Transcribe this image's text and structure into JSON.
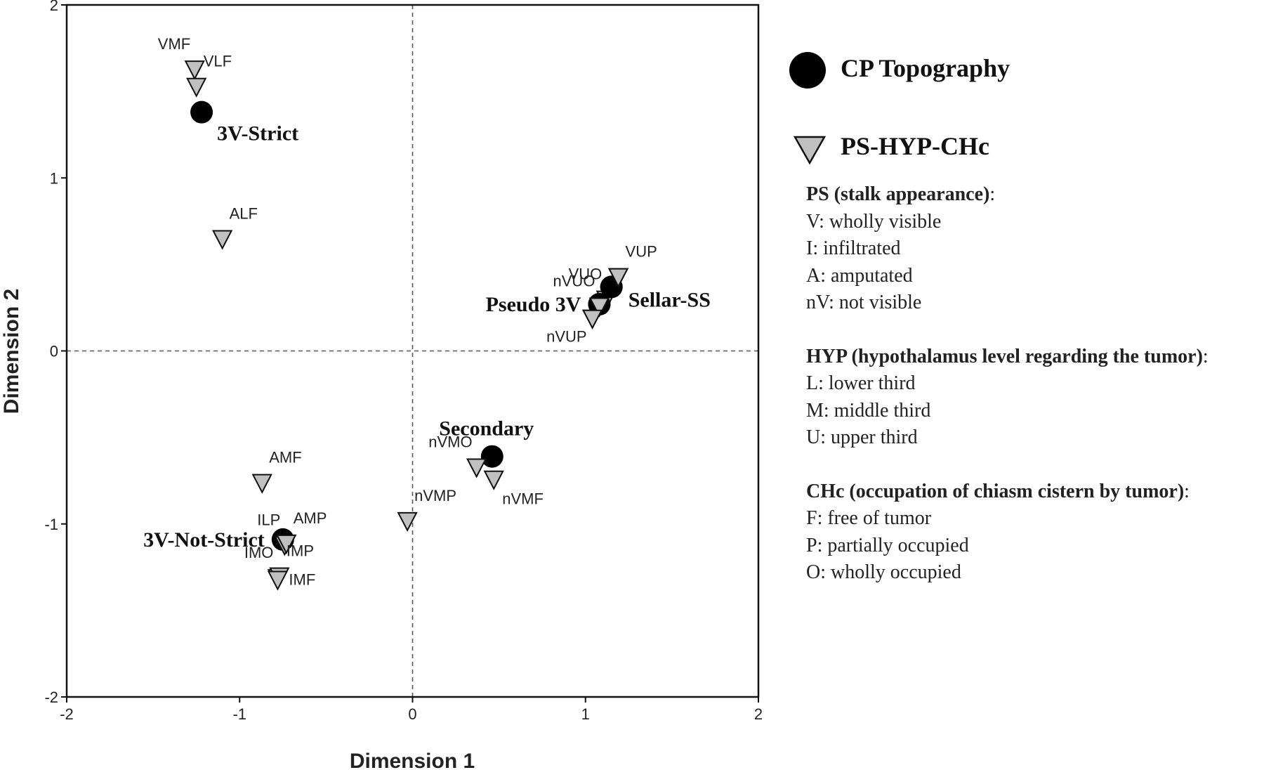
{
  "chart_data": {
    "type": "scatter",
    "xlabel": "Dimension 1",
    "ylabel": "Dimension 2",
    "xlim": [
      -2,
      2
    ],
    "ylim": [
      -2,
      2
    ],
    "xticks": [
      -2,
      -1,
      0,
      1,
      2
    ],
    "yticks": [
      -2,
      -1,
      0,
      1,
      2
    ],
    "xtick_labels": [
      "-2",
      "-1",
      "0",
      "1",
      "2"
    ],
    "ytick_labels": [
      "-2",
      "-1",
      "0",
      "1",
      "2"
    ],
    "reference_lines": {
      "x": 0,
      "y": 0,
      "style": "dashed"
    },
    "legend": {
      "placement": "right",
      "entries": [
        {
          "name": "CP Topography",
          "marker": "circle",
          "color": "#000000"
        },
        {
          "name": "PS-HYP-CHc",
          "marker": "triangle-down",
          "color": "#c0c0c0"
        }
      ]
    },
    "series": [
      {
        "name": "CP Topography",
        "marker": "circle",
        "color": "#000000",
        "points": [
          {
            "label": "3V-Strict",
            "x": -1.22,
            "y": 1.38,
            "label_pos": "below-right"
          },
          {
            "label": "Pseudo 3V",
            "x": 1.08,
            "y": 0.27,
            "label_pos": "left"
          },
          {
            "label": "Sellar-SS",
            "x": 1.15,
            "y": 0.37,
            "label_pos": "right"
          },
          {
            "label": "Secondary",
            "x": 0.46,
            "y": -0.61,
            "label_pos": "above"
          },
          {
            "label": "3V-Not-Strict",
            "x": -0.75,
            "y": -1.09,
            "label_pos": "left"
          }
        ]
      },
      {
        "name": "PS-HYP-CHc",
        "marker": "triangle-down",
        "color": "#c0c0c0",
        "points": [
          {
            "label": "VMF",
            "x": -1.26,
            "y": 1.63,
            "label_pos": "upper-left"
          },
          {
            "label": "VLF",
            "x": -1.25,
            "y": 1.53,
            "label_pos": "upper-right"
          },
          {
            "label": "ALF",
            "x": -1.1,
            "y": 0.65,
            "label_pos": "upper-right"
          },
          {
            "label": "VUO",
            "x": 1.12,
            "y": 0.3,
            "label_pos": "upper-left"
          },
          {
            "label": "VUP",
            "x": 1.19,
            "y": 0.43,
            "label_pos": "upper-right"
          },
          {
            "label": "nVUO",
            "x": 1.08,
            "y": 0.26,
            "label_pos": "upper-left"
          },
          {
            "label": "nVUP",
            "x": 1.04,
            "y": 0.19,
            "label_pos": "lower-left"
          },
          {
            "label": "nVMO",
            "x": 0.37,
            "y": -0.67,
            "label_pos": "upper-left"
          },
          {
            "label": "nVMF",
            "x": 0.47,
            "y": -0.74,
            "label_pos": "lower-right"
          },
          {
            "label": "nVMP",
            "x": -0.03,
            "y": -0.98,
            "label_pos": "upper-right"
          },
          {
            "label": "AMF",
            "x": -0.87,
            "y": -0.76,
            "label_pos": "upper-right"
          },
          {
            "label": "ILP",
            "x": -0.74,
            "y": -1.12,
            "label_pos": "upper-left"
          },
          {
            "label": "AMP",
            "x": -0.73,
            "y": -1.11,
            "label_pos": "upper-right"
          },
          {
            "label": "IMO",
            "x": -0.78,
            "y": -1.31,
            "label_pos": "upper-left"
          },
          {
            "label": "IMP",
            "x": -0.77,
            "y": -1.3,
            "label_pos": "upper-right"
          },
          {
            "label": "IMF",
            "x": -0.78,
            "y": -1.32,
            "label_pos": "right"
          }
        ]
      }
    ]
  },
  "key": {
    "groups": [
      {
        "heading": "PS (stalk appearance)",
        "suffix": ":",
        "items": [
          "V: wholly visible",
          "I: infiltrated",
          "A: amputated",
          "nV: not visible"
        ]
      },
      {
        "heading": "HYP (hypothalamus level regarding the tumor)",
        "suffix": ":",
        "items": [
          "L: lower third",
          "M: middle third",
          "U: upper third"
        ]
      },
      {
        "heading": "CHc (occupation of chiasm cistern by tumor)",
        "suffix": ":",
        "items": [
          "F: free of tumor",
          "P: partially occupied",
          "O: wholly occupied"
        ]
      }
    ]
  }
}
